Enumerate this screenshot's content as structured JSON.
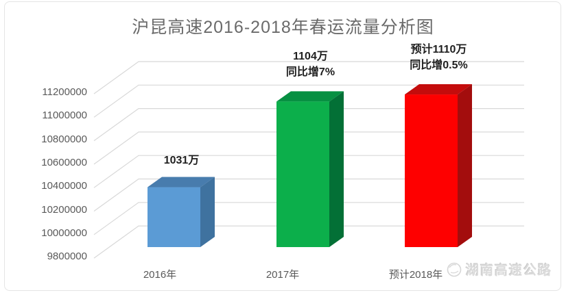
{
  "chart_data": {
    "type": "bar",
    "style": "3d-column",
    "title": "沪昆高速2016-2018年春运流量分析图",
    "categories": [
      "2016年",
      "2017年",
      "预计2018年"
    ],
    "values": [
      10310000,
      11040000,
      11100000
    ],
    "xlabel": "",
    "ylabel": "",
    "ylim": [
      9800000,
      11200000
    ],
    "grid": true,
    "legend": false,
    "y_axis": {
      "min": 9800000,
      "max": 11200000,
      "step": 200000,
      "tick_labels": [
        "11200000",
        "11000000",
        "10800000",
        "10600000",
        "10400000",
        "10200000",
        "10000000",
        "9800000"
      ]
    },
    "bars": [
      {
        "category": "2016年",
        "value": 10310000,
        "label_lines": [
          "1031万"
        ],
        "color_front": "#5B9BD5",
        "color_top": "#487CAD",
        "color_side": "#3F729F"
      },
      {
        "category": "2017年",
        "value": 11040000,
        "label_lines": [
          "1104万",
          "同比增7%"
        ],
        "color_front": "#0CAF4B",
        "color_top": "#079042",
        "color_side": "#037036"
      },
      {
        "category": "预计2018年",
        "value": 11100000,
        "label_lines": [
          "预计1110万",
          "同比增0.5%"
        ],
        "color_front": "#FE0000",
        "color_top": "#C40C0C",
        "color_side": "#A30D0D"
      }
    ],
    "gridline_color": "#D8D8D8",
    "axis_text_color": "#595959",
    "title_color": "#6A6A6A",
    "data_label_color": "#1F1F1F"
  },
  "watermark": {
    "logo": "hunan-expressway-emblem",
    "text": "湖南高速公路"
  }
}
